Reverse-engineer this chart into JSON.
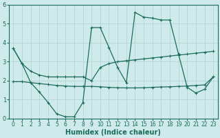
{
  "xlabel": "Humidex (Indice chaleur)",
  "xlim": [
    -0.5,
    23.5
  ],
  "ylim": [
    0,
    6
  ],
  "xticks": [
    0,
    1,
    2,
    3,
    4,
    5,
    6,
    7,
    8,
    9,
    10,
    11,
    12,
    13,
    14,
    15,
    16,
    17,
    18,
    19,
    20,
    21,
    22,
    23
  ],
  "yticks": [
    0,
    1,
    2,
    3,
    4,
    5,
    6
  ],
  "bg_color": "#ceeaea",
  "grid_color": "#b8d8d8",
  "line_color": "#1a6b5a",
  "line1_x": [
    0,
    1,
    2,
    3,
    4,
    5,
    6,
    7,
    8,
    9,
    10,
    11,
    12,
    13,
    14,
    15,
    16,
    17,
    18,
    19,
    20,
    21,
    22,
    23
  ],
  "line1_y": [
    3.7,
    2.9,
    2.5,
    2.3,
    2.2,
    2.2,
    2.2,
    2.2,
    2.2,
    2.0,
    2.7,
    2.9,
    3.0,
    3.05,
    3.1,
    3.15,
    3.2,
    3.25,
    3.3,
    3.35,
    3.4,
    3.45,
    3.5,
    3.55
  ],
  "line2_x": [
    0,
    1,
    2,
    3,
    4,
    5,
    6,
    7,
    8,
    9,
    10,
    11,
    12,
    13,
    14,
    15,
    16,
    17,
    18,
    19,
    20,
    21,
    22,
    23
  ],
  "line2_y": [
    3.7,
    2.9,
    1.9,
    1.4,
    0.85,
    0.25,
    0.1,
    0.1,
    0.85,
    4.8,
    4.8,
    3.75,
    2.7,
    1.9,
    5.6,
    5.35,
    5.3,
    5.2,
    5.2,
    3.4,
    1.65,
    1.35,
    1.55,
    2.2
  ],
  "line3_x": [
    0,
    1,
    2,
    3,
    4,
    5,
    6,
    7,
    8,
    9,
    10,
    11,
    12,
    13,
    14,
    15,
    16,
    17,
    18,
    19,
    20,
    21,
    22,
    23
  ],
  "line3_y": [
    1.95,
    1.95,
    1.9,
    1.85,
    1.8,
    1.75,
    1.72,
    1.7,
    1.7,
    1.7,
    1.68,
    1.65,
    1.63,
    1.62,
    1.62,
    1.63,
    1.65,
    1.67,
    1.68,
    1.7,
    1.72,
    1.75,
    1.78,
    2.2
  ]
}
